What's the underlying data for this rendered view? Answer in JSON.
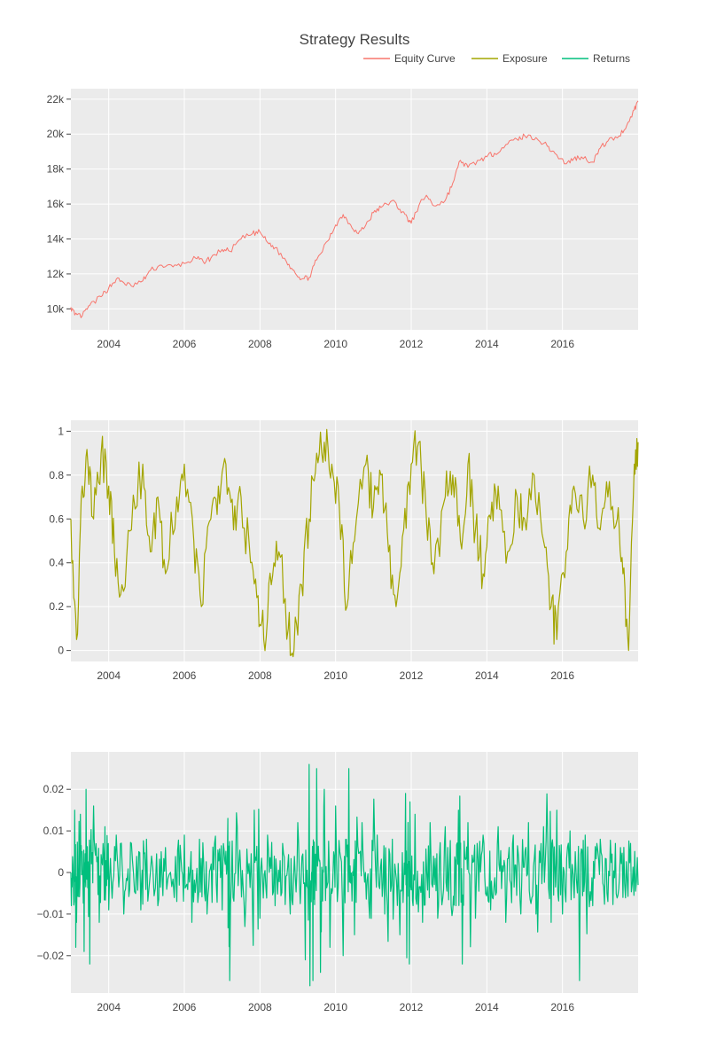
{
  "title": "Strategy Results",
  "colors": {
    "equity": "#F8766D",
    "exposure": "#A3A500",
    "returns": "#00BF7D",
    "panel_bg": "#EBEBEB",
    "grid": "#FFFFFF",
    "text": "#444444"
  },
  "legend": {
    "placement": "top-right",
    "items": [
      "Equity Curve",
      "Exposure",
      "Returns"
    ]
  },
  "chart_data": [
    {
      "type": "line",
      "name": "Equity Curve",
      "xlim": [
        2003.0,
        2018.0
      ],
      "ylim": [
        8800,
        22600
      ],
      "x_ticks": [
        2004,
        2006,
        2008,
        2010,
        2012,
        2014,
        2016
      ],
      "x_tick_labels": [
        "2004",
        "2006",
        "2008",
        "2010",
        "2012",
        "2014",
        "2016"
      ],
      "y_ticks": [
        10000,
        12000,
        14000,
        16000,
        18000,
        20000,
        22000
      ],
      "y_tick_labels": [
        "10k",
        "12k",
        "14k",
        "16k",
        "18k",
        "20k",
        "22k"
      ],
      "grid": true,
      "points": [
        [
          2003.0,
          10100
        ],
        [
          2003.1,
          9650
        ],
        [
          2003.3,
          9600
        ],
        [
          2003.5,
          10200
        ],
        [
          2003.8,
          10700
        ],
        [
          2004.0,
          11200
        ],
        [
          2004.2,
          11700
        ],
        [
          2004.4,
          11500
        ],
        [
          2004.6,
          11300
        ],
        [
          2004.9,
          11600
        ],
        [
          2005.1,
          12200
        ],
        [
          2005.4,
          12500
        ],
        [
          2005.7,
          12400
        ],
        [
          2006.0,
          12600
        ],
        [
          2006.3,
          12900
        ],
        [
          2006.5,
          12700
        ],
        [
          2006.7,
          12900
        ],
        [
          2007.0,
          13400
        ],
        [
          2007.2,
          13300
        ],
        [
          2007.5,
          14000
        ],
        [
          2007.8,
          14300
        ],
        [
          2008.0,
          14400
        ],
        [
          2008.2,
          13800
        ],
        [
          2008.4,
          13500
        ],
        [
          2008.7,
          12700
        ],
        [
          2008.9,
          12200
        ],
        [
          2009.1,
          11700
        ],
        [
          2009.3,
          11800
        ],
        [
          2009.5,
          12800
        ],
        [
          2009.8,
          13900
        ],
        [
          2010.0,
          14800
        ],
        [
          2010.2,
          15400
        ],
        [
          2010.4,
          14800
        ],
        [
          2010.6,
          14300
        ],
        [
          2010.8,
          14800
        ],
        [
          2011.0,
          15500
        ],
        [
          2011.2,
          15800
        ],
        [
          2011.5,
          16200
        ],
        [
          2011.7,
          15700
        ],
        [
          2011.9,
          15200
        ],
        [
          2012.0,
          14900
        ],
        [
          2012.2,
          15900
        ],
        [
          2012.4,
          16500
        ],
        [
          2012.6,
          15900
        ],
        [
          2012.9,
          16200
        ],
        [
          2013.1,
          17200
        ],
        [
          2013.3,
          18500
        ],
        [
          2013.5,
          18100
        ],
        [
          2013.8,
          18500
        ],
        [
          2014.0,
          18700
        ],
        [
          2014.2,
          18900
        ],
        [
          2014.5,
          19400
        ],
        [
          2014.8,
          19700
        ],
        [
          2015.0,
          19900
        ],
        [
          2015.3,
          19800
        ],
        [
          2015.6,
          19300
        ],
        [
          2015.8,
          18900
        ],
        [
          2016.1,
          18300
        ],
        [
          2016.3,
          18600
        ],
        [
          2016.5,
          18700
        ],
        [
          2016.8,
          18400
        ],
        [
          2017.0,
          19200
        ],
        [
          2017.2,
          19600
        ],
        [
          2017.5,
          19900
        ],
        [
          2017.7,
          20500
        ],
        [
          2017.9,
          21400
        ],
        [
          2018.0,
          21900
        ]
      ]
    },
    {
      "type": "line",
      "name": "Exposure",
      "xlim": [
        2003.0,
        2018.0
      ],
      "ylim": [
        -0.05,
        1.05
      ],
      "x_ticks": [
        2004,
        2006,
        2008,
        2010,
        2012,
        2014,
        2016
      ],
      "x_tick_labels": [
        "2004",
        "2006",
        "2008",
        "2010",
        "2012",
        "2014",
        "2016"
      ],
      "y_ticks": [
        0,
        0.2,
        0.4,
        0.6,
        0.8,
        1
      ],
      "y_tick_labels": [
        "0",
        "0.2",
        "0.4",
        "0.6",
        "0.8",
        "1"
      ],
      "grid": true,
      "points": [
        [
          2003.0,
          0.6
        ],
        [
          2003.15,
          0.05
        ],
        [
          2003.3,
          0.75
        ],
        [
          2003.45,
          0.85
        ],
        [
          2003.6,
          0.6
        ],
        [
          2003.8,
          0.9
        ],
        [
          2004.0,
          0.75
        ],
        [
          2004.15,
          0.45
        ],
        [
          2004.35,
          0.3
        ],
        [
          2004.6,
          0.55
        ],
        [
          2004.9,
          0.85
        ],
        [
          2005.1,
          0.45
        ],
        [
          2005.3,
          0.7
        ],
        [
          2005.5,
          0.35
        ],
        [
          2005.8,
          0.7
        ],
        [
          2006.0,
          0.85
        ],
        [
          2006.25,
          0.5
        ],
        [
          2006.45,
          0.2
        ],
        [
          2006.7,
          0.6
        ],
        [
          2006.9,
          0.75
        ],
        [
          2007.1,
          0.85
        ],
        [
          2007.3,
          0.55
        ],
        [
          2007.5,
          0.7
        ],
        [
          2007.75,
          0.4
        ],
        [
          2007.95,
          0.25
        ],
        [
          2008.1,
          0.05
        ],
        [
          2008.3,
          0.3
        ],
        [
          2008.5,
          0.45
        ],
        [
          2008.75,
          0.1
        ],
        [
          2008.9,
          0.0
        ],
        [
          2009.1,
          0.3
        ],
        [
          2009.3,
          0.6
        ],
        [
          2009.5,
          0.9
        ],
        [
          2009.7,
          0.95
        ],
        [
          2009.9,
          0.85
        ],
        [
          2010.1,
          0.65
        ],
        [
          2010.3,
          0.2
        ],
        [
          2010.5,
          0.5
        ],
        [
          2010.8,
          0.85
        ],
        [
          2011.0,
          0.65
        ],
        [
          2011.2,
          0.8
        ],
        [
          2011.4,
          0.45
        ],
        [
          2011.6,
          0.2
        ],
        [
          2011.8,
          0.55
        ],
        [
          2012.0,
          0.85
        ],
        [
          2012.2,
          0.95
        ],
        [
          2012.4,
          0.6
        ],
        [
          2012.6,
          0.35
        ],
        [
          2012.9,
          0.7
        ],
        [
          2013.1,
          0.8
        ],
        [
          2013.3,
          0.5
        ],
        [
          2013.5,
          0.85
        ],
        [
          2013.7,
          0.55
        ],
        [
          2013.9,
          0.35
        ],
        [
          2014.1,
          0.6
        ],
        [
          2014.3,
          0.75
        ],
        [
          2014.55,
          0.45
        ],
        [
          2014.8,
          0.7
        ],
        [
          2015.0,
          0.6
        ],
        [
          2015.25,
          0.8
        ],
        [
          2015.5,
          0.5
        ],
        [
          2015.7,
          0.2
        ],
        [
          2015.85,
          0.05
        ],
        [
          2016.1,
          0.45
        ],
        [
          2016.3,
          0.75
        ],
        [
          2016.55,
          0.6
        ],
        [
          2016.8,
          0.8
        ],
        [
          2017.0,
          0.55
        ],
        [
          2017.2,
          0.7
        ],
        [
          2017.45,
          0.6
        ],
        [
          2017.6,
          0.35
        ],
        [
          2017.75,
          0.0
        ],
        [
          2017.9,
          0.85
        ],
        [
          2018.0,
          0.95
        ]
      ]
    },
    {
      "type": "line",
      "name": "Returns",
      "xlim": [
        2003.0,
        2018.0
      ],
      "ylim": [
        -0.029,
        0.029
      ],
      "x_ticks": [
        2004,
        2006,
        2008,
        2010,
        2012,
        2014,
        2016
      ],
      "x_tick_labels": [
        "2004",
        "2006",
        "2008",
        "2010",
        "2012",
        "2014",
        "2016"
      ],
      "y_ticks": [
        -0.02,
        -0.01,
        0,
        0.01,
        0.02
      ],
      "y_tick_labels": [
        "−0.02",
        "−0.01",
        "0",
        "0.01",
        "0.02"
      ],
      "grid": true,
      "points": [
        [
          2003.0,
          0.0
        ],
        [
          2003.1,
          0.015
        ],
        [
          2003.15,
          -0.012
        ],
        [
          2003.25,
          0.014
        ],
        [
          2003.35,
          -0.019
        ],
        [
          2003.4,
          0.02
        ],
        [
          2003.5,
          -0.022
        ],
        [
          2003.6,
          0.016
        ],
        [
          2003.75,
          -0.012
        ],
        [
          2003.9,
          0.011
        ],
        [
          2004.0,
          -0.009
        ],
        [
          2004.2,
          0.009
        ],
        [
          2004.4,
          -0.01
        ],
        [
          2004.6,
          0.007
        ],
        [
          2004.85,
          -0.009
        ],
        [
          2005.0,
          0.008
        ],
        [
          2005.3,
          -0.008
        ],
        [
          2005.5,
          0.006
        ],
        [
          2005.8,
          -0.007
        ],
        [
          2006.0,
          0.009
        ],
        [
          2006.2,
          -0.012
        ],
        [
          2006.4,
          0.008
        ],
        [
          2006.6,
          -0.01
        ],
        [
          2006.8,
          0.007
        ],
        [
          2007.0,
          -0.009
        ],
        [
          2007.15,
          0.013
        ],
        [
          2007.2,
          -0.026
        ],
        [
          2007.4,
          0.011
        ],
        [
          2007.6,
          -0.013
        ],
        [
          2007.85,
          0.015
        ],
        [
          2008.0,
          -0.011
        ],
        [
          2008.2,
          0.009
        ],
        [
          2008.4,
          -0.008
        ],
        [
          2008.6,
          0.007
        ],
        [
          2008.8,
          -0.01
        ],
        [
          2009.0,
          0.012
        ],
        [
          2009.2,
          -0.021
        ],
        [
          2009.3,
          0.026
        ],
        [
          2009.4,
          -0.026
        ],
        [
          2009.5,
          0.025
        ],
        [
          2009.6,
          -0.024
        ],
        [
          2009.7,
          0.02
        ],
        [
          2009.85,
          -0.018
        ],
        [
          2010.0,
          0.016
        ],
        [
          2010.2,
          -0.02
        ],
        [
          2010.35,
          0.025
        ],
        [
          2010.5,
          -0.015
        ],
        [
          2010.7,
          0.012
        ],
        [
          2010.9,
          -0.011
        ],
        [
          2011.1,
          0.009
        ],
        [
          2011.3,
          -0.01
        ],
        [
          2011.5,
          0.008
        ],
        [
          2011.7,
          -0.015
        ],
        [
          2011.85,
          0.019
        ],
        [
          2011.95,
          -0.022
        ],
        [
          2012.1,
          0.014
        ],
        [
          2012.3,
          -0.012
        ],
        [
          2012.5,
          0.012
        ],
        [
          2012.7,
          -0.011
        ],
        [
          2012.9,
          0.011
        ],
        [
          2013.1,
          -0.009
        ],
        [
          2013.25,
          0.015
        ],
        [
          2013.35,
          -0.022
        ],
        [
          2013.5,
          0.012
        ],
        [
          2013.7,
          -0.011
        ],
        [
          2013.9,
          0.009
        ],
        [
          2014.1,
          -0.009
        ],
        [
          2014.3,
          0.011
        ],
        [
          2014.5,
          -0.012
        ],
        [
          2014.7,
          0.009
        ],
        [
          2014.9,
          -0.01
        ],
        [
          2015.1,
          0.012
        ],
        [
          2015.3,
          -0.01
        ],
        [
          2015.5,
          0.011
        ],
        [
          2015.7,
          -0.012
        ],
        [
          2015.85,
          0.015
        ],
        [
          2016.0,
          -0.01
        ],
        [
          2016.2,
          0.01
        ],
        [
          2016.45,
          -0.026
        ],
        [
          2016.6,
          0.009
        ],
        [
          2016.8,
          -0.008
        ],
        [
          2017.0,
          0.008
        ],
        [
          2017.2,
          -0.007
        ],
        [
          2017.4,
          0.007
        ],
        [
          2017.6,
          -0.006
        ],
        [
          2017.8,
          0.007
        ],
        [
          2018.0,
          -0.003
        ]
      ]
    }
  ]
}
